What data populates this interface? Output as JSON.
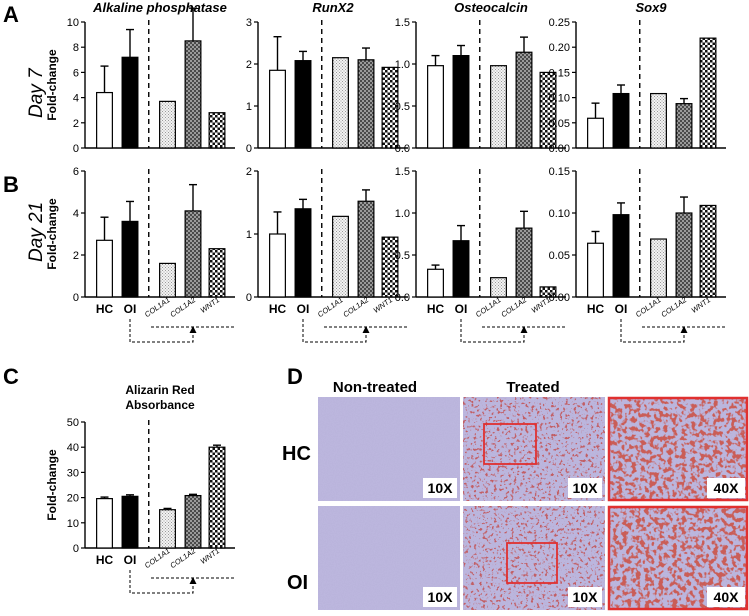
{
  "panel_labels": {
    "a": "A",
    "b": "B",
    "c": "C",
    "d": "D"
  },
  "row_labels": {
    "day7": "Day 7",
    "day21": "Day 21"
  },
  "y_axis_label": "Fold-change",
  "group_labels": {
    "hc": "HC",
    "oi": "OI"
  },
  "treatment_labels": [
    "COL1A1",
    "COL1A2",
    "WNT1"
  ],
  "colors": {
    "hc_fill": "#ffffff",
    "oi_fill": "#000000",
    "col1a1_fill": "#e0e0e0",
    "col1a2_fill": "#8c8c8c",
    "wnt1_fill": "#ffffff",
    "axis": "#000000",
    "highlight_box": "#e03030",
    "stain_background": "#b7b1d9",
    "stain_red": "#9e1c1c"
  },
  "micrograph_section": {
    "column_headers": [
      "Non-treated",
      "Treated"
    ],
    "row_headers": [
      "HC",
      "OI"
    ],
    "magnifications": {
      "hc": [
        "10X",
        "10X",
        "40X"
      ],
      "oi": [
        "10X",
        "10X",
        "40X"
      ]
    }
  },
  "chart_data": [
    {
      "id": "d7-alp",
      "type": "bar",
      "panel": "A",
      "title": "Alkaline phosphatase",
      "categories": [
        "HC",
        "OI",
        "COL1A1",
        "COL1A2",
        "WNT1"
      ],
      "values": [
        4.4,
        7.2,
        3.7,
        8.5,
        2.8
      ],
      "errors": [
        2.1,
        2.2,
        0,
        2.6,
        0
      ],
      "ylim": [
        0,
        10
      ],
      "yticks": [
        "0",
        "2",
        "4",
        "6",
        "8",
        "10"
      ],
      "ylabel": "Fold-change"
    },
    {
      "id": "d7-runx2",
      "type": "bar",
      "panel": "A",
      "title": "RunX2",
      "categories": [
        "HC",
        "OI",
        "COL1A1",
        "COL1A2",
        "WNT1"
      ],
      "values": [
        1.85,
        2.08,
        2.15,
        2.1,
        1.92
      ],
      "errors": [
        0.8,
        0.22,
        0,
        0.28,
        0
      ],
      "ylim": [
        0,
        3
      ],
      "yticks": [
        "0",
        "1",
        "2",
        "3"
      ],
      "ylabel": ""
    },
    {
      "id": "d7-ocn",
      "type": "bar",
      "panel": "A",
      "title": "Osteocalcin",
      "categories": [
        "HC",
        "OI",
        "COL1A1",
        "COL1A2",
        "WNT1"
      ],
      "values": [
        0.98,
        1.1,
        0.98,
        1.14,
        0.9
      ],
      "errors": [
        0.12,
        0.12,
        0,
        0.18,
        0
      ],
      "ylim": [
        0,
        1.5
      ],
      "yticks": [
        "0.0",
        "0.5",
        "1.0",
        "1.5"
      ],
      "ylabel": ""
    },
    {
      "id": "d7-sox9",
      "type": "bar",
      "panel": "A",
      "title": "Sox9",
      "categories": [
        "HC",
        "OI",
        "COL1A1",
        "COL1A2",
        "WNT1"
      ],
      "values": [
        0.059,
        0.108,
        0.108,
        0.088,
        0.218
      ],
      "errors": [
        0.03,
        0.017,
        0,
        0.01,
        0
      ],
      "ylim": [
        0,
        0.25
      ],
      "yticks": [
        "0.00",
        "0.05",
        "0.10",
        "0.15",
        "0.20",
        "0.25"
      ],
      "ylabel": ""
    },
    {
      "id": "d21-alp",
      "type": "bar",
      "panel": "B",
      "title": "",
      "categories": [
        "HC",
        "OI",
        "COL1A1",
        "COL1A2",
        "WNT1"
      ],
      "values": [
        2.7,
        3.6,
        1.6,
        4.1,
        2.3
      ],
      "errors": [
        1.1,
        0.95,
        0,
        1.25,
        0
      ],
      "ylim": [
        0,
        6
      ],
      "yticks": [
        "0",
        "2",
        "4",
        "6"
      ],
      "ylabel": "Fold-change"
    },
    {
      "id": "d21-runx2",
      "type": "bar",
      "panel": "B",
      "title": "",
      "categories": [
        "HC",
        "OI",
        "COL1A1",
        "COL1A2",
        "WNT1"
      ],
      "values": [
        1.0,
        1.4,
        1.28,
        1.52,
        0.95
      ],
      "errors": [
        0.35,
        0.15,
        0,
        0.18,
        0
      ],
      "ylim": [
        0,
        2
      ],
      "yticks": [
        "0",
        "1",
        "2"
      ],
      "ylabel": ""
    },
    {
      "id": "d21-ocn",
      "type": "bar",
      "panel": "B",
      "title": "",
      "categories": [
        "HC",
        "OI",
        "COL1A1",
        "COL1A2",
        "WNT1"
      ],
      "values": [
        0.33,
        0.67,
        0.23,
        0.82,
        0.12
      ],
      "errors": [
        0.05,
        0.18,
        0,
        0.2,
        0
      ],
      "ylim": [
        0,
        1.5
      ],
      "yticks": [
        "0.0",
        "0.5",
        "1.0",
        "1.5"
      ],
      "ylabel": ""
    },
    {
      "id": "d21-sox9",
      "type": "bar",
      "panel": "B",
      "title": "",
      "categories": [
        "HC",
        "OI",
        "COL1A1",
        "COL1A2",
        "WNT1"
      ],
      "values": [
        0.064,
        0.098,
        0.069,
        0.1,
        0.109
      ],
      "errors": [
        0.014,
        0.014,
        0,
        0.019,
        0
      ],
      "ylim": [
        0,
        0.15
      ],
      "yticks": [
        "0.00",
        "0.05",
        "0.10",
        "0.15"
      ],
      "ylabel": ""
    },
    {
      "id": "c-alizarin",
      "type": "bar",
      "panel": "C",
      "title": "Alizarin Red",
      "subtitle": "Absorbance",
      "categories": [
        "HC",
        "OI",
        "COL1A1",
        "COL1A2",
        "WNT1"
      ],
      "values": [
        19.6,
        20.5,
        15.2,
        20.8,
        40.0
      ],
      "errors": [
        0.6,
        0.6,
        0.5,
        0.5,
        0.8
      ],
      "ylim": [
        0,
        50
      ],
      "yticks": [
        "0",
        "10",
        "20",
        "30",
        "40",
        "50"
      ],
      "ylabel": "Fold-change"
    }
  ]
}
